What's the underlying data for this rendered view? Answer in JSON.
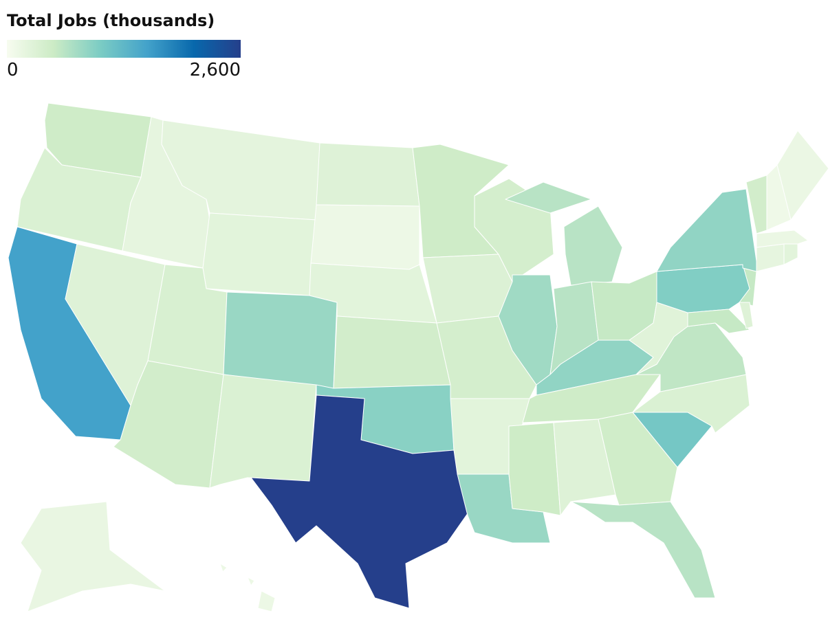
{
  "chart_data": {
    "type": "choropleth",
    "title": "Total Jobs (thousands)",
    "colorscale": [
      "#f7fcf0",
      "#ccebc5",
      "#7bccc4",
      "#43a2ca",
      "#0868ac",
      "#253f8b"
    ],
    "colorlim": [
      0,
      2600
    ],
    "colorticks": [
      0,
      {
        "value": 2600,
        "label": "2,600"
      }
    ],
    "values": [
      480,
      350,
      1560,
      300,
      200,
      230,
      250,
      380,
      450,
      850,
      350,
      300,
      120,
      250,
      450,
      950,
      2600,
      480,
      330,
      420,
      250,
      850,
      420,
      800,
      650,
      650,
      560,
      900,
      480,
      500,
      300,
      470,
      650,
      1100,
      350,
      600,
      560,
      280,
      1000,
      900,
      560,
      300,
      200,
      250,
      150,
      450,
      100,
      150,
      170,
      130,
      120
    ]
  }
}
